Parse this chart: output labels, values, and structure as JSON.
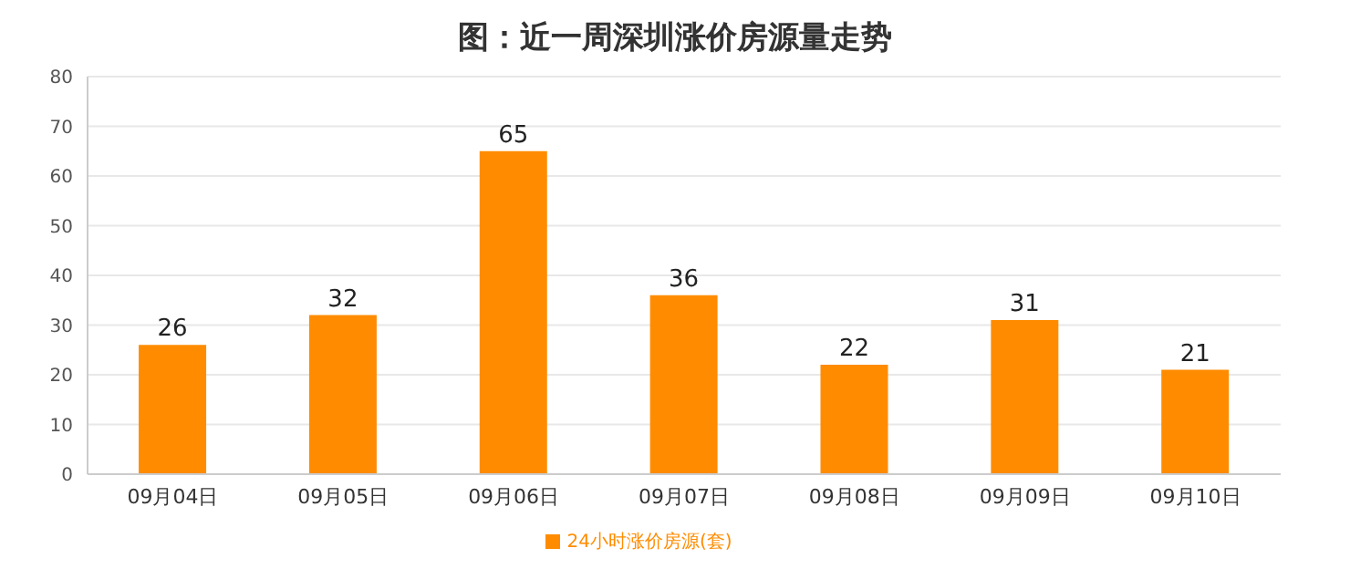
{
  "chart_data": {
    "type": "bar",
    "title": "图：近一周深圳涨价房源量走势",
    "categories": [
      "09月04日",
      "09月05日",
      "09月06日",
      "09月07日",
      "09月08日",
      "09月09日",
      "09月10日"
    ],
    "series": [
      {
        "name": "24小时涨价房源(套)",
        "color": "#ff8c00",
        "values": [
          26,
          32,
          65,
          36,
          22,
          31,
          21
        ]
      }
    ],
    "ylim": [
      0,
      80
    ],
    "yticks": [
      0,
      10,
      20,
      30,
      40,
      50,
      60,
      70,
      80
    ],
    "grid": "y",
    "legend": "bottom",
    "data_labels": true
  }
}
